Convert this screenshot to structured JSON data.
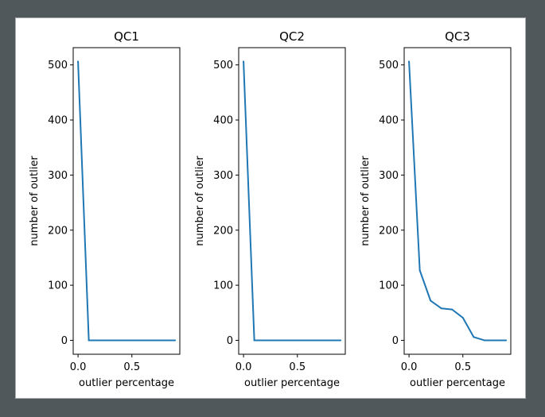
{
  "colors": {
    "background": "#51585b",
    "figure": "#ffffff",
    "line": "#1f77b4",
    "axis": "#000000"
  },
  "chart_data": [
    {
      "type": "line",
      "title": "QC1",
      "xlabel": "outlier percentage",
      "ylabel": "number of outlier",
      "xlim": [
        -0.045,
        0.945
      ],
      "ylim": [
        -25.3,
        531.3
      ],
      "xticks": [
        0.0,
        0.5
      ],
      "xtick_labels": [
        "0.0",
        "0.5"
      ],
      "yticks": [
        0,
        100,
        200,
        300,
        400,
        500
      ],
      "ytick_labels": [
        "0",
        "100",
        "200",
        "300",
        "400",
        "500"
      ],
      "grid": false,
      "series": [
        {
          "x": [
            0.0,
            0.1,
            0.2,
            0.3,
            0.4,
            0.5,
            0.6,
            0.7,
            0.8,
            0.9
          ],
          "y": [
            506,
            0,
            0,
            0,
            0,
            0,
            0,
            0,
            0,
            0
          ]
        }
      ]
    },
    {
      "type": "line",
      "title": "QC2",
      "xlabel": "outlier percentage",
      "ylabel": "number of outlier",
      "xlim": [
        -0.045,
        0.945
      ],
      "ylim": [
        -25.3,
        531.3
      ],
      "xticks": [
        0.0,
        0.5
      ],
      "xtick_labels": [
        "0.0",
        "0.5"
      ],
      "yticks": [
        0,
        100,
        200,
        300,
        400,
        500
      ],
      "ytick_labels": [
        "0",
        "100",
        "200",
        "300",
        "400",
        "500"
      ],
      "grid": false,
      "series": [
        {
          "x": [
            0.0,
            0.1,
            0.2,
            0.3,
            0.4,
            0.5,
            0.6,
            0.7,
            0.8,
            0.9
          ],
          "y": [
            506,
            0,
            0,
            0,
            0,
            0,
            0,
            0,
            0,
            0
          ]
        }
      ]
    },
    {
      "type": "line",
      "title": "QC3",
      "xlabel": "outlier percentage",
      "ylabel": "number of outlier",
      "xlim": [
        -0.045,
        0.945
      ],
      "ylim": [
        -25.3,
        531.3
      ],
      "xticks": [
        0.0,
        0.5
      ],
      "xtick_labels": [
        "0.0",
        "0.5"
      ],
      "yticks": [
        0,
        100,
        200,
        300,
        400,
        500
      ],
      "ytick_labels": [
        "0",
        "100",
        "200",
        "300",
        "400",
        "500"
      ],
      "grid": false,
      "series": [
        {
          "x": [
            0.0,
            0.1,
            0.2,
            0.3,
            0.4,
            0.5,
            0.6,
            0.7,
            0.8,
            0.9
          ],
          "y": [
            506,
            127,
            72,
            58,
            56,
            41,
            6,
            0,
            0,
            0
          ]
        }
      ]
    }
  ]
}
